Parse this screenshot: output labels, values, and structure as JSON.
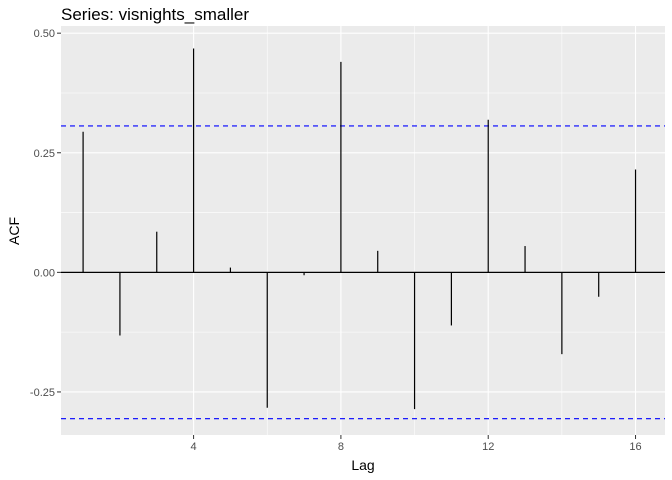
{
  "chart_data": {
    "type": "bar",
    "title": "Series: visnights_smaller",
    "xlabel": "Lag",
    "ylabel": "ACF",
    "x": [
      1,
      2,
      3,
      4,
      5,
      6,
      7,
      8,
      9,
      10,
      11,
      12,
      13,
      14,
      15,
      16
    ],
    "values": [
      0.294,
      -0.132,
      0.085,
      0.468,
      0.01,
      -0.283,
      -0.006,
      0.44,
      0.045,
      -0.286,
      -0.111,
      0.319,
      0.055,
      -0.171,
      -0.051,
      0.215
    ],
    "confidence_limit": 0.306,
    "xlim": [
      0.4,
      16.8
    ],
    "ylim": [
      -0.34,
      0.515
    ],
    "xticks": [
      4,
      8,
      12,
      16
    ],
    "yticks": [
      -0.25,
      0.0,
      0.25,
      0.5
    ],
    "ytick_labels": [
      "-0.25",
      "0.00",
      "0.25",
      "0.50"
    ],
    "grid": true,
    "colors": {
      "panel": "#ebebeb",
      "grid": "#ffffff",
      "bars": "#000000",
      "confidence_lines": "#0000ff"
    }
  }
}
